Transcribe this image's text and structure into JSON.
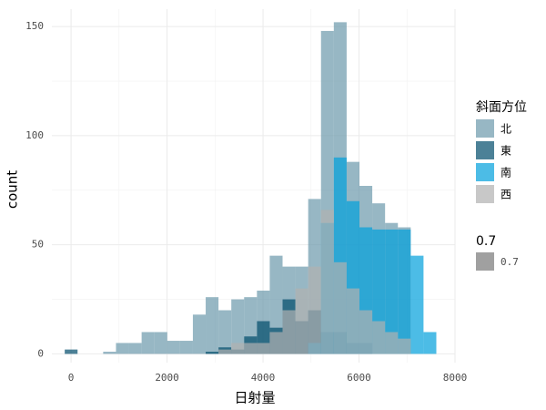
{
  "chart_data": {
    "type": "histogram",
    "x_label": "日射量",
    "y_label": "count",
    "bins": [
      -132,
      135,
      402,
      669,
      936,
      1203,
      1470,
      1737,
      2004,
      2271,
      2538,
      2805,
      3072,
      3339,
      3606,
      3873,
      4140,
      4407,
      4674,
      4941,
      5208,
      5475,
      5742,
      6009,
      6276,
      6543,
      6810,
      7077,
      7344,
      7611
    ],
    "series": [
      {
        "name": "北",
        "color": "#6b98ab",
        "values": [
          0,
          0,
          0,
          1,
          5,
          5,
          10,
          10,
          6,
          6,
          18,
          26,
          20,
          25,
          26,
          29,
          45,
          40,
          40,
          71,
          148,
          152,
          88,
          77,
          69,
          60,
          58,
          0,
          0
        ]
      },
      {
        "name": "東",
        "color": "#004c6b",
        "values": [
          2,
          0,
          0,
          0,
          0,
          0,
          0,
          0,
          0,
          0,
          0,
          1,
          3,
          2,
          8,
          15,
          12,
          25,
          15,
          20,
          10,
          10,
          5,
          5,
          0,
          0,
          0,
          0,
          0
        ]
      },
      {
        "name": "南",
        "color": "#00a0dc",
        "values": [
          0,
          0,
          0,
          0,
          0,
          0,
          0,
          0,
          0,
          0,
          0,
          0,
          0,
          0,
          0,
          0,
          0,
          0,
          0,
          5,
          60,
          90,
          70,
          58,
          57,
          57,
          57,
          45,
          10
        ]
      },
      {
        "name": "西",
        "color": "#b0b0b0",
        "values": [
          0,
          0,
          0,
          0,
          0,
          0,
          0,
          0,
          0,
          0,
          0,
          0,
          2,
          5,
          5,
          5,
          10,
          20,
          30,
          40,
          66,
          42,
          30,
          20,
          15,
          10,
          7,
          0,
          0
        ]
      }
    ],
    "alpha": 0.7,
    "legend_title": "斜面方位",
    "alpha_legend": {
      "title": "0.7",
      "label": "0.7"
    },
    "xlim": [
      -400,
      8000
    ],
    "xticks": [
      0,
      2000,
      4000,
      6000,
      8000
    ],
    "ylim": [
      -4,
      158
    ],
    "yticks": [
      0,
      50,
      100,
      150
    ],
    "grid": true
  }
}
